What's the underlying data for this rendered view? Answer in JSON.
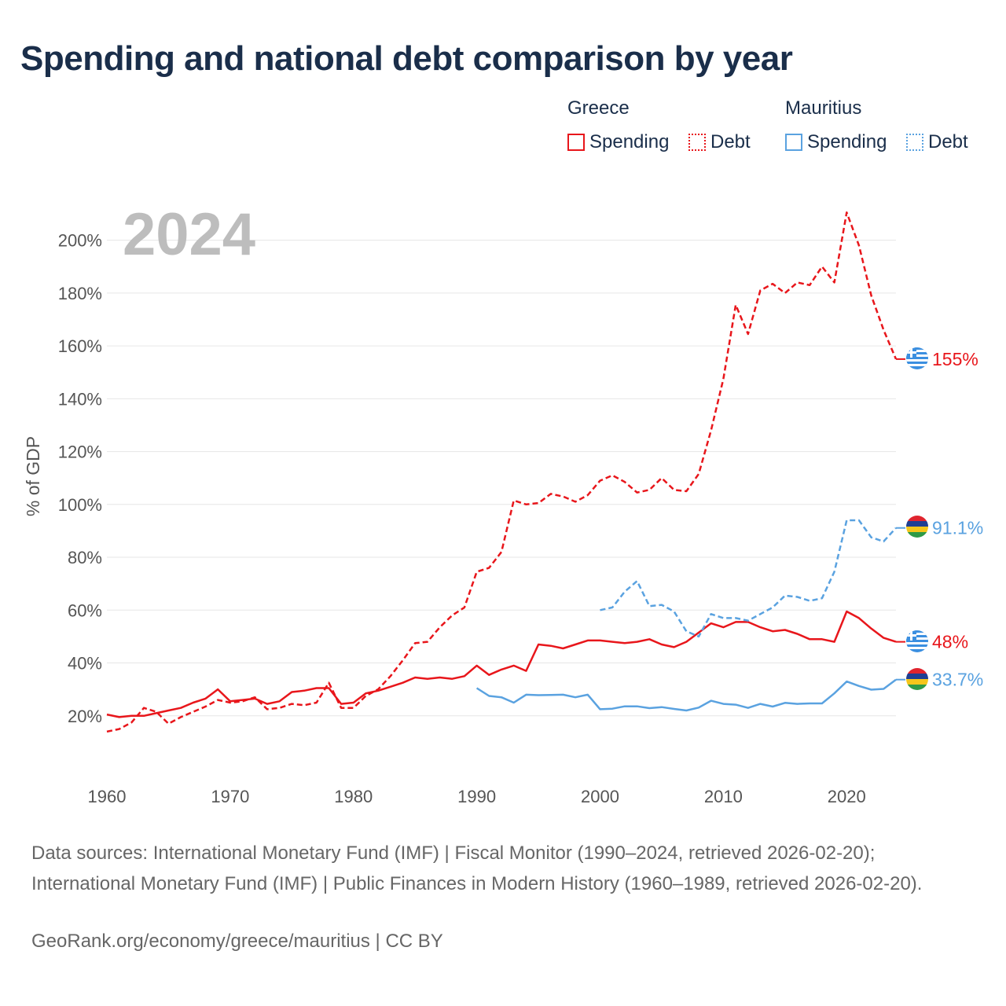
{
  "title": "Spending and national debt comparison by year",
  "legend": {
    "groups": [
      {
        "name": "Greece",
        "color": "#e8161b",
        "items": [
          {
            "label": "Spending",
            "style": "solid"
          },
          {
            "label": "Debt",
            "style": "dotted"
          }
        ]
      },
      {
        "name": "Mauritius",
        "color": "#5aa2e0",
        "items": [
          {
            "label": "Spending",
            "style": "solid"
          },
          {
            "label": "Debt",
            "style": "dotted"
          }
        ]
      }
    ]
  },
  "footer": {
    "sources": "Data sources: International Monetary Fund (IMF) | Fiscal Monitor (1990–2024, retrieved 2026-02-20); International Monetary Fund (IMF) | Public Finances in Modern History (1960–1989, retrieved 2026-02-20).",
    "credit": "GeoRank.org/economy/greece/mauritius | CC BY"
  },
  "chart_data": {
    "type": "line",
    "year_label": "2024",
    "ylabel": "% of GDP",
    "xlim": [
      1960,
      2024
    ],
    "ylim": [
      0,
      210
    ],
    "x_ticks": [
      1960,
      1970,
      1980,
      1990,
      2000,
      2010,
      2020
    ],
    "y_ticks": [
      20,
      40,
      60,
      80,
      100,
      120,
      140,
      160,
      180,
      200
    ],
    "grid": true,
    "series": [
      {
        "name": "Greece Debt",
        "country": "Greece",
        "color": "#e8161b",
        "dash": true,
        "end_label": "155%",
        "x": [
          1960,
          1961,
          1962,
          1963,
          1964,
          1965,
          1966,
          1967,
          1968,
          1969,
          1970,
          1971,
          1972,
          1973,
          1974,
          1975,
          1976,
          1977,
          1978,
          1979,
          1980,
          1981,
          1982,
          1983,
          1984,
          1985,
          1986,
          1987,
          1988,
          1989,
          1990,
          1991,
          1992,
          1993,
          1994,
          1995,
          1996,
          1997,
          1998,
          1999,
          2000,
          2001,
          2002,
          2003,
          2004,
          2005,
          2006,
          2007,
          2008,
          2009,
          2010,
          2011,
          2012,
          2013,
          2014,
          2015,
          2016,
          2017,
          2018,
          2019,
          2020,
          2021,
          2022,
          2023,
          2024
        ],
        "y": [
          14,
          15,
          17.5,
          23,
          21.5,
          17,
          19.5,
          21.5,
          23.5,
          26,
          25,
          25.5,
          27,
          22.5,
          23,
          24.5,
          24,
          25,
          32.5,
          23,
          23,
          27.5,
          30,
          35,
          41,
          47.5,
          48,
          53.5,
          58,
          61,
          74.5,
          76,
          82,
          101.5,
          100,
          100.5,
          104,
          103,
          101,
          103.5,
          109,
          111,
          108.5,
          104.5,
          105.5,
          110,
          105.5,
          105,
          111.5,
          128,
          147.5,
          175.5,
          164.5,
          181,
          183.5,
          180,
          184,
          183,
          190,
          184,
          210.5,
          198,
          179,
          166,
          155
        ]
      },
      {
        "name": "Greece Spending",
        "country": "Greece",
        "color": "#e8161b",
        "dash": false,
        "end_label": "48%",
        "x": [
          1960,
          1961,
          1962,
          1963,
          1964,
          1965,
          1966,
          1967,
          1968,
          1969,
          1970,
          1971,
          1972,
          1973,
          1974,
          1975,
          1976,
          1977,
          1978,
          1979,
          1980,
          1981,
          1982,
          1983,
          1984,
          1985,
          1986,
          1987,
          1988,
          1989,
          1990,
          1991,
          1992,
          1993,
          1994,
          1995,
          1996,
          1997,
          1998,
          1999,
          2000,
          2001,
          2002,
          2003,
          2004,
          2005,
          2006,
          2007,
          2008,
          2009,
          2010,
          2011,
          2012,
          2013,
          2014,
          2015,
          2016,
          2017,
          2018,
          2019,
          2020,
          2021,
          2022,
          2023,
          2024
        ],
        "y": [
          20.5,
          19.5,
          20,
          20,
          21,
          22,
          23,
          25,
          26.5,
          30,
          25.5,
          26,
          26.5,
          24.5,
          25.5,
          29,
          29.5,
          30.5,
          30.5,
          24.5,
          25,
          28.5,
          29.5,
          31,
          32.5,
          34.5,
          34,
          34.5,
          34,
          35,
          39,
          35.5,
          37.5,
          39,
          37,
          47,
          46.5,
          45.5,
          47,
          48.5,
          48.5,
          48,
          47.5,
          48,
          49,
          47,
          46,
          48,
          51.5,
          55,
          53.5,
          55.5,
          55.5,
          53.5,
          52,
          52.5,
          51,
          49,
          49,
          48,
          59.5,
          57,
          53,
          49.5,
          48
        ]
      },
      {
        "name": "Mauritius Debt",
        "country": "Mauritius",
        "color": "#5aa2e0",
        "dash": true,
        "end_label": "91.1%",
        "x": [
          2000,
          2001,
          2002,
          2003,
          2004,
          2005,
          2006,
          2007,
          2008,
          2009,
          2010,
          2011,
          2012,
          2013,
          2014,
          2015,
          2016,
          2017,
          2018,
          2019,
          2020,
          2021,
          2022,
          2023,
          2024
        ],
        "y": [
          60,
          61,
          67,
          71,
          61.5,
          62,
          59.5,
          52,
          50,
          58.5,
          57,
          57,
          56,
          58.5,
          61,
          65.5,
          65,
          63.5,
          64.5,
          74.5,
          94,
          94,
          87.5,
          86,
          91.1
        ]
      },
      {
        "name": "Mauritius Spending",
        "country": "Mauritius",
        "color": "#5aa2e0",
        "dash": false,
        "end_label": "33.7%",
        "x": [
          1990,
          1991,
          1992,
          1993,
          1994,
          1995,
          1996,
          1997,
          1998,
          1999,
          2000,
          2001,
          2002,
          2003,
          2004,
          2005,
          2006,
          2007,
          2008,
          2009,
          2010,
          2011,
          2012,
          2013,
          2014,
          2015,
          2016,
          2017,
          2018,
          2019,
          2020,
          2021,
          2022,
          2023,
          2024
        ],
        "y": [
          30.5,
          27.5,
          27,
          25,
          28,
          27.8,
          27.9,
          28,
          27,
          28,
          22.5,
          22.7,
          23.6,
          23.6,
          22.9,
          23.3,
          22.6,
          22,
          23.1,
          25.7,
          24.5,
          24.2,
          23,
          24.5,
          23.5,
          24.9,
          24.5,
          24.7,
          24.7,
          28.5,
          33,
          31.3,
          29.9,
          30.2,
          33.7
        ]
      }
    ]
  }
}
